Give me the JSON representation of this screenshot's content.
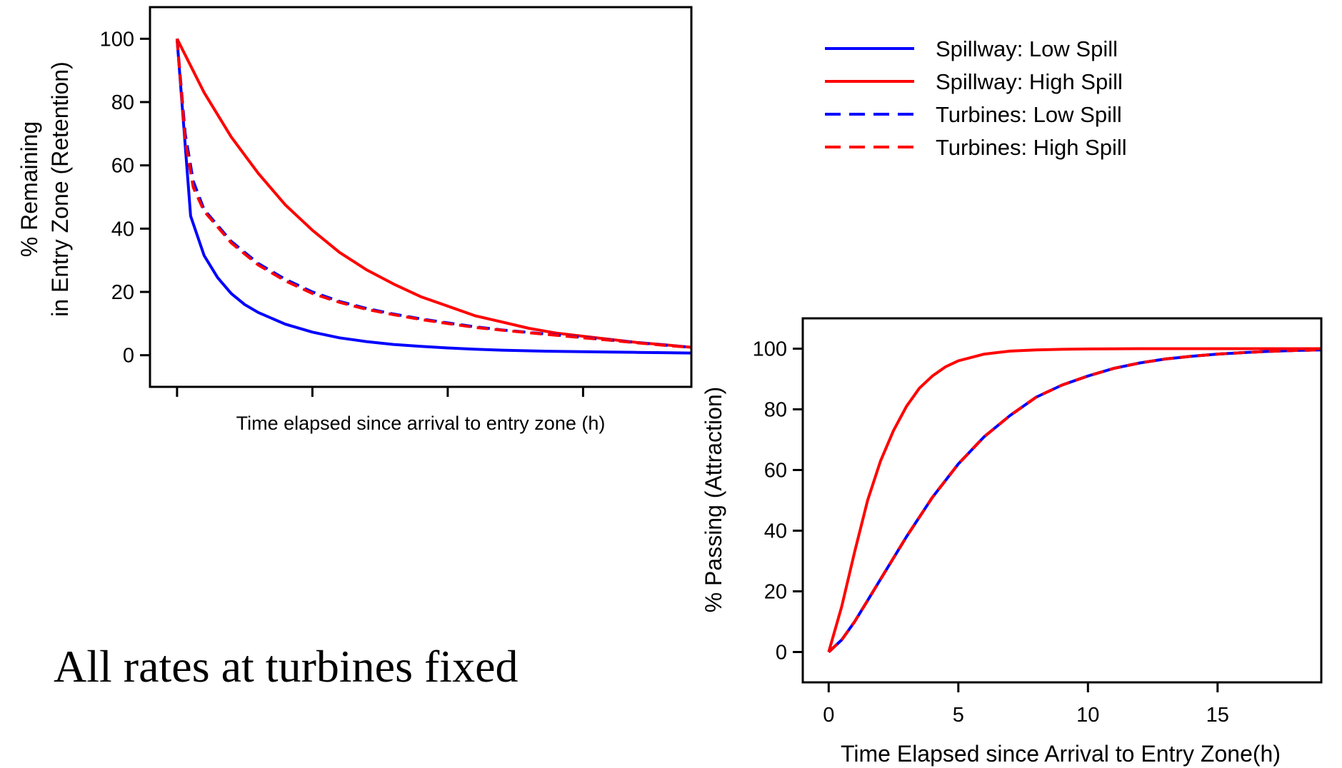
{
  "caption": "All rates at turbines fixed",
  "legend": {
    "entries": [
      {
        "label": "Spillway: Low Spill",
        "color": "#0000ff",
        "style": "solid"
      },
      {
        "label": "Spillway: High Spill",
        "color": "#ff0000",
        "style": "solid"
      },
      {
        "label": "Turbines: Low Spill",
        "color": "#0000ff",
        "style": "dashed"
      },
      {
        "label": "Turbines: High Spill",
        "color": "#ff0000",
        "style": "dashed"
      }
    ]
  },
  "chart_data": [
    {
      "type": "line",
      "xlabel": "Time elapsed since arrival to entry zone (h)",
      "ylabel_lines": [
        "% Remaining",
        "in Entry Zone (Retention)"
      ],
      "ylim": [
        -10,
        110
      ],
      "xlim": [
        -1,
        19
      ],
      "yticks": [
        0,
        20,
        40,
        60,
        80,
        100
      ],
      "xticks": [
        0,
        5,
        10,
        15
      ],
      "xtick_labels_shown": false,
      "grid": false,
      "series": [
        {
          "name": "Spillway: Low Spill",
          "color": "#0000ff",
          "dash": false,
          "x": [
            0,
            0.5,
            1,
            1.5,
            2,
            2.5,
            3,
            4,
            5,
            6,
            7,
            8,
            9,
            10,
            11,
            12,
            13,
            14,
            15,
            16,
            17,
            18,
            19
          ],
          "y": [
            100,
            44,
            31.5,
            24.5,
            19.5,
            16,
            13.5,
            9.8,
            7.3,
            5.5,
            4.3,
            3.4,
            2.8,
            2.3,
            1.9,
            1.6,
            1.4,
            1.2,
            1.1,
            1,
            0.9,
            0.8,
            0.7
          ]
        },
        {
          "name": "Spillway: High Spill",
          "color": "#ff0000",
          "dash": false,
          "x": [
            0,
            1,
            2,
            3,
            4,
            5,
            6,
            7,
            8,
            9,
            10,
            11,
            12,
            13,
            14,
            15,
            16,
            17,
            18,
            19
          ],
          "y": [
            100,
            83,
            69,
            57.5,
            47.5,
            39.5,
            32.5,
            27,
            22.5,
            18.5,
            15.5,
            12.5,
            10.5,
            8.5,
            7,
            6,
            5,
            4,
            3.3,
            2.5
          ]
        },
        {
          "name": "Turbines: Low Spill",
          "color": "#0000ff",
          "dash": true,
          "x": [
            0,
            0.3,
            0.6,
            1,
            1.5,
            2,
            3,
            4,
            5,
            6,
            7,
            8,
            9,
            10,
            11,
            12,
            13,
            14,
            15,
            16,
            17,
            18,
            19
          ],
          "y": [
            100,
            70,
            55,
            46,
            41,
            36,
            29,
            24,
            20,
            17,
            14.8,
            13,
            11.5,
            10.2,
            9,
            8,
            7.2,
            6.4,
            5.6,
            4.8,
            4,
            3.2,
            2.5
          ]
        },
        {
          "name": "Turbines: High Spill",
          "color": "#ff0000",
          "dash": true,
          "x": [
            0,
            0.3,
            0.6,
            1,
            1.5,
            2,
            3,
            4,
            5,
            6,
            7,
            8,
            9,
            10,
            11,
            12,
            13,
            14,
            15,
            16,
            17,
            18,
            19
          ],
          "y": [
            100,
            68,
            53,
            45.5,
            40.5,
            35.5,
            28.5,
            23.5,
            19.5,
            16.7,
            14.5,
            12.8,
            11.3,
            10,
            8.8,
            7.9,
            7.1,
            6.3,
            5.5,
            4.7,
            3.9,
            3.1,
            2.5
          ]
        }
      ]
    },
    {
      "type": "line",
      "xlabel": "Time Elapsed since Arrival to Entry Zone(h)",
      "ylabel": "% Passing (Attraction)",
      "ylim": [
        -10,
        110
      ],
      "xlim": [
        -1,
        19
      ],
      "yticks": [
        0,
        20,
        40,
        60,
        80,
        100
      ],
      "xticks": [
        0,
        5,
        10,
        15
      ],
      "xtick_labels_shown": true,
      "grid": false,
      "series": [
        {
          "name": "Spillway: Low Spill",
          "color": "#0000ff",
          "dash": false,
          "x": [
            0,
            0.5,
            1,
            1.5,
            2,
            3,
            4,
            5,
            6,
            7,
            8,
            9,
            10,
            11,
            12,
            13,
            14,
            15,
            16,
            17,
            18,
            19
          ],
          "y": [
            0,
            4,
            10,
            17,
            24,
            38,
            51,
            62,
            71,
            78,
            84,
            88,
            91,
            93.5,
            95.3,
            96.6,
            97.5,
            98.2,
            98.7,
            99.1,
            99.4,
            99.6
          ]
        },
        {
          "name": "Spillway: High Spill",
          "color": "#ff0000",
          "dash": false,
          "x": [
            0,
            0.5,
            1,
            1.5,
            2,
            2.5,
            3,
            3.5,
            4,
            4.5,
            5,
            6,
            7,
            8,
            9,
            10,
            12,
            14,
            16,
            19
          ],
          "y": [
            0,
            15,
            33,
            50,
            63,
            73,
            81,
            87,
            91,
            94,
            96,
            98.2,
            99.2,
            99.6,
            99.8,
            99.9,
            100,
            100,
            100,
            100
          ]
        },
        {
          "name": "Turbines: Low Spill",
          "color": "#0000ff",
          "dash": true,
          "x": [
            0,
            0.5,
            1,
            1.5,
            2,
            3,
            4,
            5,
            6,
            7,
            8,
            9,
            10,
            11,
            12,
            13,
            14,
            15,
            16,
            17,
            18,
            19
          ],
          "y": [
            0,
            4,
            10,
            17,
            24,
            38,
            51,
            62,
            71,
            78,
            84,
            88,
            91,
            93.5,
            95.3,
            96.6,
            97.5,
            98.2,
            98.7,
            99.1,
            99.4,
            99.6
          ]
        },
        {
          "name": "Turbines: High Spill",
          "color": "#ff0000",
          "dash": true,
          "x": [
            0,
            0.5,
            1,
            1.5,
            2,
            3,
            4,
            5,
            6,
            7,
            8,
            9,
            10,
            11,
            12,
            13,
            14,
            15,
            16,
            17,
            18,
            19
          ],
          "y": [
            0,
            4,
            10,
            17,
            24,
            38,
            51,
            62,
            71,
            78,
            84,
            88,
            91,
            93.5,
            95.3,
            96.6,
            97.5,
            98.2,
            98.7,
            99.1,
            99.4,
            99.6
          ]
        }
      ]
    }
  ]
}
